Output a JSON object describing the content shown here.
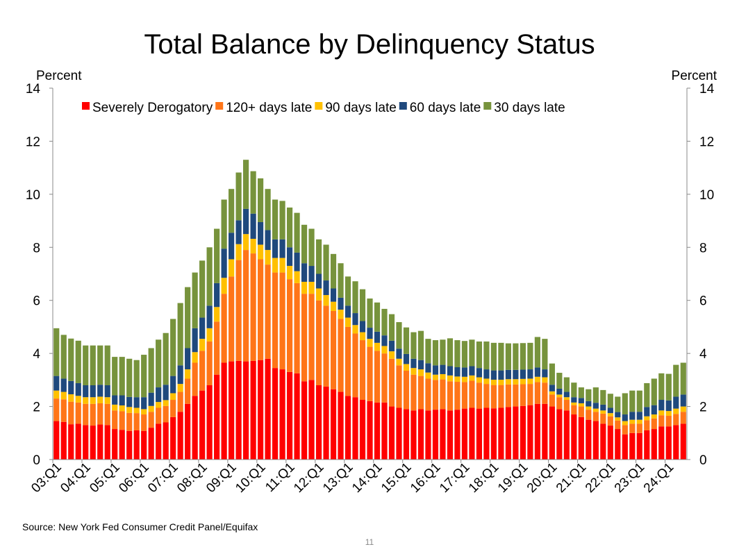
{
  "page_number": "11",
  "chart_data": {
    "type": "bar",
    "stacked": true,
    "title": "Total Balance by Delinquency Status",
    "ylabel_left": "Percent",
    "ylabel_right": "Percent",
    "ylim": [
      0,
      14
    ],
    "yticks": [
      0,
      2,
      4,
      6,
      8,
      10,
      12,
      14
    ],
    "source": "Source: New York Fed Consumer Credit Panel/Equifax",
    "legend_position": "top",
    "tick_labels": [
      "03:Q1",
      "04:Q1",
      "05:Q1",
      "06:Q1",
      "07:Q1",
      "08:Q1",
      "09:Q1",
      "10:Q1",
      "11:Q1",
      "12:Q1",
      "13:Q1",
      "14:Q1",
      "15:Q1",
      "16:Q1",
      "17:Q1",
      "18:Q1",
      "19:Q1",
      "20:Q1",
      "21:Q1",
      "22:Q1",
      "23:Q1",
      "24:Q1"
    ],
    "categories": [
      "03:Q1",
      "03:Q2",
      "03:Q3",
      "03:Q4",
      "04:Q1",
      "04:Q2",
      "04:Q3",
      "04:Q4",
      "05:Q1",
      "05:Q2",
      "05:Q3",
      "05:Q4",
      "06:Q1",
      "06:Q2",
      "06:Q3",
      "06:Q4",
      "07:Q1",
      "07:Q2",
      "07:Q3",
      "07:Q4",
      "08:Q1",
      "08:Q2",
      "08:Q3",
      "08:Q4",
      "09:Q1",
      "09:Q2",
      "09:Q3",
      "09:Q4",
      "10:Q1",
      "10:Q2",
      "10:Q3",
      "10:Q4",
      "11:Q1",
      "11:Q2",
      "11:Q3",
      "11:Q4",
      "12:Q1",
      "12:Q2",
      "12:Q3",
      "12:Q4",
      "13:Q1",
      "13:Q2",
      "13:Q3",
      "13:Q4",
      "14:Q1",
      "14:Q2",
      "14:Q3",
      "14:Q4",
      "15:Q1",
      "15:Q2",
      "15:Q3",
      "15:Q4",
      "16:Q1",
      "16:Q2",
      "16:Q3",
      "16:Q4",
      "17:Q1",
      "17:Q2",
      "17:Q3",
      "17:Q4",
      "18:Q1",
      "18:Q2",
      "18:Q3",
      "18:Q4",
      "19:Q1",
      "19:Q2",
      "19:Q3",
      "19:Q4",
      "20:Q1",
      "20:Q2",
      "20:Q3",
      "20:Q4",
      "21:Q1",
      "21:Q2",
      "21:Q3",
      "21:Q4",
      "22:Q1",
      "22:Q2",
      "22:Q3",
      "22:Q4",
      "23:Q1",
      "23:Q2",
      "23:Q3",
      "23:Q4",
      "24:Q1",
      "24:Q2",
      "24:Q3"
    ],
    "series": [
      {
        "name": "Severely Derogatory",
        "color": "#ff0000",
        "values": [
          1.45,
          1.42,
          1.33,
          1.35,
          1.3,
          1.28,
          1.32,
          1.3,
          1.15,
          1.12,
          1.08,
          1.1,
          1.08,
          1.2,
          1.35,
          1.4,
          1.6,
          1.8,
          2.1,
          2.4,
          2.6,
          2.8,
          3.2,
          3.65,
          3.7,
          3.72,
          3.7,
          3.72,
          3.75,
          3.8,
          3.45,
          3.4,
          3.3,
          3.25,
          2.95,
          3.0,
          2.8,
          2.75,
          2.65,
          2.55,
          2.4,
          2.35,
          2.25,
          2.2,
          2.15,
          2.15,
          2.0,
          1.95,
          1.9,
          1.85,
          1.9,
          1.85,
          1.88,
          1.9,
          1.85,
          1.88,
          1.92,
          1.95,
          1.92,
          1.95,
          1.93,
          1.95,
          1.98,
          2.0,
          2.02,
          2.05,
          2.1,
          2.1,
          2.0,
          1.9,
          1.85,
          1.7,
          1.6,
          1.5,
          1.45,
          1.35,
          1.28,
          1.15,
          0.95,
          1.0,
          1.0,
          1.1,
          1.15,
          1.25,
          1.25,
          1.3,
          1.35
        ]
      },
      {
        "name": "120+ days late",
        "color": "#ff7518",
        "values": [
          0.85,
          0.85,
          0.85,
          0.8,
          0.8,
          0.82,
          0.8,
          0.8,
          0.7,
          0.7,
          0.68,
          0.65,
          0.62,
          0.6,
          0.6,
          0.62,
          0.65,
          0.75,
          0.95,
          1.25,
          1.5,
          1.65,
          2.0,
          2.6,
          3.2,
          3.8,
          4.2,
          4.05,
          3.8,
          3.55,
          3.6,
          3.65,
          3.5,
          3.4,
          3.3,
          3.25,
          3.2,
          3.05,
          2.95,
          2.75,
          2.6,
          2.4,
          2.25,
          2.05,
          1.95,
          1.85,
          1.8,
          1.6,
          1.45,
          1.35,
          1.25,
          1.2,
          1.12,
          1.12,
          1.1,
          1.05,
          1.0,
          1.02,
          0.98,
          0.9,
          0.88,
          0.86,
          0.85,
          0.83,
          0.82,
          0.8,
          0.82,
          0.8,
          0.45,
          0.45,
          0.4,
          0.35,
          0.4,
          0.38,
          0.35,
          0.38,
          0.35,
          0.32,
          0.35,
          0.35,
          0.35,
          0.38,
          0.4,
          0.42,
          0.4,
          0.42,
          0.45
        ]
      },
      {
        "name": "90 days late",
        "color": "#ffc000",
        "values": [
          0.3,
          0.28,
          0.28,
          0.25,
          0.25,
          0.25,
          0.25,
          0.25,
          0.22,
          0.22,
          0.22,
          0.2,
          0.2,
          0.22,
          0.22,
          0.22,
          0.25,
          0.3,
          0.35,
          0.4,
          0.45,
          0.5,
          0.55,
          0.6,
          0.65,
          0.6,
          0.6,
          0.55,
          0.55,
          0.55,
          0.55,
          0.55,
          0.5,
          0.45,
          0.45,
          0.45,
          0.45,
          0.4,
          0.35,
          0.35,
          0.35,
          0.32,
          0.3,
          0.3,
          0.3,
          0.28,
          0.28,
          0.25,
          0.25,
          0.25,
          0.25,
          0.23,
          0.2,
          0.2,
          0.22,
          0.2,
          0.2,
          0.2,
          0.2,
          0.2,
          0.2,
          0.2,
          0.2,
          0.2,
          0.2,
          0.2,
          0.2,
          0.2,
          0.12,
          0.1,
          0.1,
          0.1,
          0.12,
          0.12,
          0.12,
          0.12,
          0.12,
          0.12,
          0.15,
          0.15,
          0.15,
          0.15,
          0.15,
          0.18,
          0.18,
          0.2,
          0.2
        ]
      },
      {
        "name": "60 days late",
        "color": "#1f497d",
        "values": [
          0.55,
          0.5,
          0.5,
          0.48,
          0.45,
          0.45,
          0.45,
          0.45,
          0.35,
          0.38,
          0.38,
          0.4,
          0.45,
          0.5,
          0.55,
          0.58,
          0.65,
          0.7,
          0.8,
          0.9,
          0.8,
          0.85,
          0.9,
          1.1,
          1.0,
          0.9,
          0.95,
          0.95,
          0.85,
          0.75,
          0.7,
          0.7,
          0.7,
          0.7,
          0.7,
          0.6,
          0.55,
          0.55,
          0.5,
          0.45,
          0.45,
          0.45,
          0.42,
          0.42,
          0.42,
          0.4,
          0.4,
          0.38,
          0.38,
          0.35,
          0.35,
          0.35,
          0.35,
          0.35,
          0.35,
          0.35,
          0.35,
          0.35,
          0.35,
          0.35,
          0.35,
          0.35,
          0.35,
          0.35,
          0.35,
          0.35,
          0.35,
          0.3,
          0.25,
          0.22,
          0.2,
          0.2,
          0.2,
          0.2,
          0.22,
          0.22,
          0.2,
          0.2,
          0.25,
          0.3,
          0.3,
          0.35,
          0.35,
          0.4,
          0.4,
          0.45,
          0.45
        ]
      },
      {
        "name": "30 days late",
        "color": "#77933c",
        "values": [
          1.8,
          1.65,
          1.6,
          1.6,
          1.5,
          1.5,
          1.48,
          1.5,
          1.45,
          1.45,
          1.44,
          1.4,
          1.6,
          1.68,
          1.8,
          1.95,
          2.15,
          2.35,
          2.3,
          2.1,
          2.15,
          2.2,
          2.05,
          1.85,
          1.65,
          1.8,
          1.85,
          1.6,
          1.65,
          1.55,
          1.5,
          1.45,
          1.5,
          1.5,
          1.45,
          1.4,
          1.3,
          1.35,
          1.3,
          1.3,
          1.1,
          1.2,
          1.2,
          1.1,
          1.1,
          1.0,
          1.0,
          1.0,
          1.0,
          1.0,
          1.1,
          0.92,
          0.95,
          0.95,
          1.05,
          1.02,
          1.0,
          1.0,
          1.0,
          1.05,
          1.04,
          1.04,
          1.0,
          1.0,
          1.0,
          1.0,
          1.15,
          1.15,
          0.8,
          0.6,
          0.55,
          0.55,
          0.4,
          0.45,
          0.58,
          0.55,
          0.53,
          0.58,
          0.8,
          0.8,
          0.8,
          0.9,
          1.0,
          1.0,
          1.0,
          1.2,
          1.2
        ]
      }
    ]
  }
}
